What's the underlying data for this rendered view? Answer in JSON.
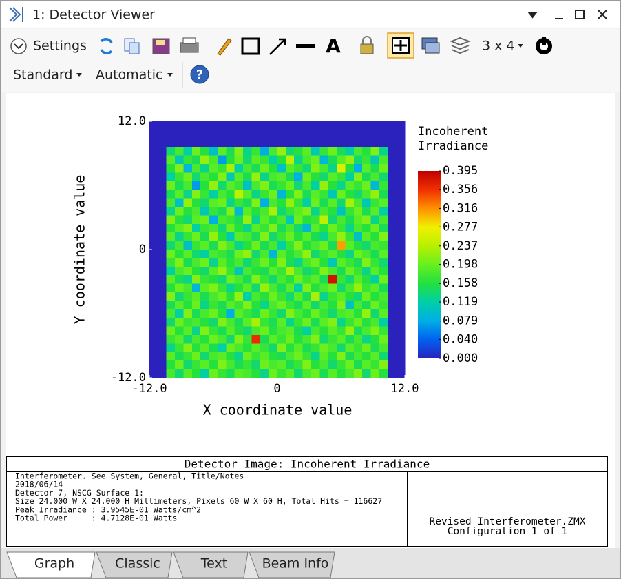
{
  "window": {
    "title": "1: Detector Viewer"
  },
  "toolbar": {
    "settings": "Settings",
    "layout": "3 x 4",
    "mode": "Standard",
    "scale": "Automatic"
  },
  "chart_data": {
    "type": "heatmap",
    "xlabel": "X coordinate value",
    "ylabel": "Y coordinate value",
    "colorbar_title": [
      "Incoherent",
      "Irradiance"
    ],
    "xlim": [
      -12,
      12
    ],
    "ylim": [
      -12,
      12
    ],
    "xticks": [
      {
        "value": -12,
        "label": "-12.0"
      },
      0,
      {
        "value": 12,
        "label": "12.0"
      }
    ],
    "yticks": [
      {
        "value": -12,
        "label": "-12.0"
      },
      0,
      {
        "value": 12,
        "label": "12.0"
      }
    ],
    "zlim": [
      0,
      0.395
    ],
    "zticks": [
      {
        "value": 0,
        "label": "0.000"
      },
      {
        "value": 0.04,
        "label": "0.040"
      },
      0.079,
      0.119,
      0.158,
      0.198,
      0.237,
      0.277,
      0.316,
      0.356,
      0.395
    ],
    "colorscale": [
      "#2b22bd",
      "#0060f0",
      "#00aee6",
      "#00cfa8",
      "#22e040",
      "#66f020",
      "#b8f000",
      "#f0f000",
      "#ff9000",
      "#f03000",
      "#c00000"
    ],
    "values": [
      [
        0,
        0,
        0,
        0,
        0,
        0,
        0,
        0,
        0,
        0,
        0,
        0,
        0,
        0,
        0,
        0,
        0,
        0,
        0,
        0,
        0,
        0,
        0,
        0,
        0,
        0,
        0,
        0,
        0,
        0
      ],
      [
        0,
        0,
        0,
        0,
        0,
        0,
        0,
        0,
        0,
        0,
        0,
        0,
        0,
        0,
        0,
        0,
        0,
        0,
        0,
        0,
        0,
        0,
        0,
        0,
        0,
        0,
        0,
        0,
        0,
        0
      ],
      [
        0,
        0,
        0,
        0,
        0,
        0,
        0,
        0,
        0,
        0,
        0,
        0,
        0,
        0,
        0,
        0,
        0,
        0,
        0,
        0,
        0,
        0,
        0,
        0,
        0,
        0,
        0,
        0,
        0,
        0
      ],
      [
        0,
        0,
        0.14,
        0.18,
        0.12,
        0.2,
        0.16,
        0.1,
        0.19,
        0.15,
        0.21,
        0.13,
        0.17,
        0.08,
        0.18,
        0.22,
        0.14,
        0.16,
        0.19,
        0.11,
        0.17,
        0.2,
        0.15,
        0.12,
        0.18,
        0.16,
        0.21,
        0.13,
        0,
        0
      ],
      [
        0,
        0,
        0.19,
        0.11,
        0.17,
        0.15,
        0.22,
        0.18,
        0.07,
        0.16,
        0.2,
        0.14,
        0.19,
        0.17,
        0.12,
        0.16,
        0.24,
        0.13,
        0.18,
        0.2,
        0.09,
        0.15,
        0.19,
        0.22,
        0.14,
        0.17,
        0.11,
        0.18,
        0,
        0
      ],
      [
        0,
        0,
        0.16,
        0.21,
        0.09,
        0.18,
        0.13,
        0.19,
        0.17,
        0.23,
        0.12,
        0.18,
        0.15,
        0.2,
        0.16,
        0.1,
        0.19,
        0.17,
        0.14,
        0.21,
        0.18,
        0.13,
        0.26,
        0.16,
        0.08,
        0.19,
        0.15,
        0.2,
        0,
        0
      ],
      [
        0,
        0,
        0.12,
        0.17,
        0.2,
        0.14,
        0.18,
        0.16,
        0.21,
        0.11,
        0.19,
        0.15,
        0.22,
        0.13,
        0.18,
        0.19,
        0.15,
        0.08,
        0.2,
        0.16,
        0.14,
        0.19,
        0.17,
        0.12,
        0.21,
        0.15,
        0.18,
        0.14,
        0,
        0
      ],
      [
        0,
        0,
        0.2,
        0.15,
        0.18,
        0.07,
        0.16,
        0.22,
        0.14,
        0.19,
        0.17,
        0.1,
        0.18,
        0.21,
        0.15,
        0.17,
        0.2,
        0.14,
        0.18,
        0.12,
        0.22,
        0.16,
        0.13,
        0.19,
        0.17,
        0.2,
        0.09,
        0.17,
        0,
        0
      ],
      [
        0,
        0,
        0.15,
        0.19,
        0.13,
        0.21,
        0.17,
        0.12,
        0.18,
        0.16,
        0.24,
        0.19,
        0.13,
        0.17,
        0.2,
        0.09,
        0.16,
        0.21,
        0.15,
        0.19,
        0.17,
        0.11,
        0.2,
        0.16,
        0.14,
        0.18,
        0.22,
        0.15,
        0,
        0
      ],
      [
        0,
        0,
        0.18,
        0.1,
        0.22,
        0.16,
        0.14,
        0.19,
        0.2,
        0.13,
        0.17,
        0.15,
        0.21,
        0.08,
        0.18,
        0.16,
        0.22,
        0.17,
        0.12,
        0.2,
        0.15,
        0.19,
        0.14,
        0.23,
        0.18,
        0.11,
        0.17,
        0.19,
        0,
        0
      ],
      [
        0,
        0,
        0.13,
        0.2,
        0.16,
        0.18,
        0.11,
        0.17,
        0.15,
        0.21,
        0.09,
        0.19,
        0.16,
        0.18,
        0.23,
        0.14,
        0.17,
        0.19,
        0.21,
        0.13,
        0.18,
        0.16,
        0.1,
        0.17,
        0.2,
        0.15,
        0.19,
        0.12,
        0,
        0
      ],
      [
        0,
        0,
        0.21,
        0.16,
        0.14,
        0.19,
        0.2,
        0.08,
        0.18,
        0.17,
        0.15,
        0.22,
        0.13,
        0.19,
        0.16,
        0.18,
        0.11,
        0.2,
        0.16,
        0.17,
        0.24,
        0.14,
        0.18,
        0.15,
        0.19,
        0.21,
        0.13,
        0.18,
        0,
        0
      ],
      [
        0,
        0,
        0.16,
        0.19,
        0.21,
        0.12,
        0.17,
        0.18,
        0.14,
        0.2,
        0.16,
        0.13,
        0.19,
        0.17,
        0.21,
        0.15,
        0.18,
        0.14,
        0.09,
        0.19,
        0.16,
        0.2,
        0.17,
        0.13,
        0.18,
        0.16,
        0.2,
        0.15,
        0,
        0
      ],
      [
        0,
        0,
        0.19,
        0.13,
        0.17,
        0.2,
        0.15,
        0.22,
        0.16,
        0.11,
        0.19,
        0.18,
        0.15,
        0.21,
        0.14,
        0.17,
        0.2,
        0.16,
        0.19,
        0.15,
        0.13,
        0.18,
        0.22,
        0.17,
        0.1,
        0.19,
        0.16,
        0.21,
        0,
        0
      ],
      [
        0,
        0,
        0.14,
        0.18,
        0.1,
        0.17,
        0.19,
        0.15,
        0.21,
        0.18,
        0.13,
        0.16,
        0.2,
        0.15,
        0.18,
        0.12,
        0.17,
        0.21,
        0.16,
        0.18,
        0.2,
        0.15,
        0.31,
        0.19,
        0.16,
        0.14,
        0.18,
        0.17,
        0,
        0
      ],
      [
        0,
        0,
        0.2,
        0.16,
        0.19,
        0.14,
        0.12,
        0.18,
        0.17,
        0.15,
        0.2,
        0.22,
        0.14,
        0.18,
        0.09,
        0.19,
        0.16,
        0.18,
        0.22,
        0.14,
        0.17,
        0.19,
        0.16,
        0.13,
        0.2,
        0.18,
        0.15,
        0.19,
        0,
        0
      ],
      [
        0,
        0,
        0.17,
        0.21,
        0.15,
        0.18,
        0.2,
        0.13,
        0.19,
        0.16,
        0.18,
        0.14,
        0.17,
        0.2,
        0.16,
        0.21,
        0.15,
        0.13,
        0.18,
        0.2,
        0.16,
        0.11,
        0.19,
        0.17,
        0.15,
        0.21,
        0.17,
        0.14,
        0,
        0
      ],
      [
        0,
        0,
        0.12,
        0.18,
        0.2,
        0.16,
        0.14,
        0.19,
        0.22,
        0.17,
        0.11,
        0.18,
        0.16,
        0.15,
        0.19,
        0.17,
        0.23,
        0.18,
        0.14,
        0.16,
        0.21,
        0.18,
        0.15,
        0.2,
        0.17,
        0.13,
        0.19,
        0.16,
        0,
        0
      ],
      [
        0,
        0,
        0.19,
        0.15,
        0.13,
        0.21,
        0.17,
        0.16,
        0.14,
        0.2,
        0.18,
        0.15,
        0.21,
        0.17,
        0.14,
        0.18,
        0.16,
        0.2,
        0.17,
        0.19,
        0.15,
        0.38,
        0.17,
        0.14,
        0.19,
        0.16,
        0.12,
        0.2,
        0,
        0
      ],
      [
        0,
        0,
        0.16,
        0.2,
        0.18,
        0.09,
        0.19,
        0.21,
        0.17,
        0.13,
        0.16,
        0.19,
        0.14,
        0.22,
        0.18,
        0.15,
        0.19,
        0.12,
        0.21,
        0.16,
        0.18,
        0.2,
        0.14,
        0.18,
        0.22,
        0.17,
        0.19,
        0.15,
        0,
        0
      ],
      [
        0,
        0,
        0.21,
        0.14,
        0.17,
        0.19,
        0.15,
        0.18,
        0.2,
        0.16,
        0.22,
        0.12,
        0.18,
        0.16,
        0.2,
        0.17,
        0.14,
        0.19,
        0.15,
        0.23,
        0.13,
        0.17,
        0.19,
        0.16,
        0.14,
        0.2,
        0.16,
        0.18,
        0,
        0
      ],
      [
        0,
        0,
        0.15,
        0.19,
        0.16,
        0.2,
        0.13,
        0.17,
        0.15,
        0.19,
        0.17,
        0.21,
        0.16,
        0.13,
        0.18,
        0.2,
        0.17,
        0.15,
        0.19,
        0.14,
        0.18,
        0.16,
        0.21,
        0.1,
        0.18,
        0.15,
        0.2,
        0.17,
        0,
        0
      ],
      [
        0,
        0,
        0.18,
        0.12,
        0.21,
        0.15,
        0.18,
        0.2,
        0.16,
        0.08,
        0.19,
        0.17,
        0.15,
        0.2,
        0.17,
        0.14,
        0.21,
        0.18,
        0.16,
        0.2,
        0.17,
        0.14,
        0.18,
        0.19,
        0.16,
        0.22,
        0.14,
        0.19,
        0,
        0
      ],
      [
        0,
        0,
        0.14,
        0.2,
        0.17,
        0.18,
        0.16,
        0.14,
        0.21,
        0.18,
        0.15,
        0.19,
        0.23,
        0.17,
        0.15,
        0.19,
        0.13,
        0.17,
        0.2,
        0.15,
        0.19,
        0.21,
        0.13,
        0.17,
        0.2,
        0.16,
        0.18,
        0.12,
        0,
        0
      ],
      [
        0,
        0,
        0.2,
        0.16,
        0.19,
        0.13,
        0.21,
        0.17,
        0.15,
        0.19,
        0.16,
        0.14,
        0.18,
        0.2,
        0.16,
        0.18,
        0.19,
        0.15,
        0.12,
        0.18,
        0.16,
        0.19,
        0.17,
        0.22,
        0.15,
        0.18,
        0.21,
        0.17,
        0,
        0
      ],
      [
        0,
        0,
        0.17,
        0.19,
        0.14,
        0.18,
        0.16,
        0.2,
        0.18,
        0.14,
        0.21,
        0.17,
        0.36,
        0.15,
        0.19,
        0.17,
        0.2,
        0.16,
        0.18,
        0.21,
        0.14,
        0.17,
        0.19,
        0.15,
        0.18,
        0.13,
        0.16,
        0.2,
        0,
        0
      ],
      [
        0,
        0,
        0.13,
        0.17,
        0.21,
        0.16,
        0.19,
        0.15,
        0.12,
        0.2,
        0.18,
        0.16,
        0.19,
        0.17,
        0.14,
        0.21,
        0.16,
        0.19,
        0.15,
        0.17,
        0.2,
        0.18,
        0.14,
        0.19,
        0.17,
        0.2,
        0.15,
        0.18,
        0,
        0
      ],
      [
        0,
        0,
        0.19,
        0.15,
        0.17,
        0.2,
        0.14,
        0.18,
        0.19,
        0.16,
        0.13,
        0.2,
        0.17,
        0.19,
        0.16,
        0.15,
        0.18,
        0.2,
        0.17,
        0.13,
        0.19,
        0.16,
        0.21,
        0.15,
        0.18,
        0.16,
        0.19,
        0.14,
        0,
        0
      ],
      [
        0,
        0,
        0.16,
        0.2,
        0.14,
        0.17,
        0.19,
        0.16,
        0.21,
        0.18,
        0.15,
        0.17,
        0.14,
        0.2,
        0.18,
        0.19,
        0.15,
        0.17,
        0.21,
        0.16,
        0.18,
        0.14,
        0.17,
        0.2,
        0.15,
        0.19,
        0.17,
        0.21,
        0,
        0
      ],
      [
        0,
        0,
        0.18,
        0.14,
        0.19,
        0.16,
        0.12,
        0.2,
        0.17,
        0.15,
        0.19,
        0.18,
        0.16,
        0.13,
        0.2,
        0.17,
        0.19,
        0.14,
        0.18,
        0.2,
        0.15,
        0.19,
        0.16,
        0.18,
        0.21,
        0.14,
        0.2,
        0.16,
        0,
        0
      ]
    ]
  },
  "info": {
    "title": "Detector Image: Incoherent Irradiance",
    "lines": [
      "Interferometer. See System, General, Title/Notes",
      "2018/06/14",
      "Detector 7, NSCG Surface 1:",
      "Size 24.000 W X 24.000 H Millimeters, Pixels 60 W X 60 H, Total Hits = 116627",
      "Peak Irradiance : 3.9545E-01 Watts/cm^2",
      "Total Power     : 4.7128E-01 Watts"
    ],
    "file": "Revised Interferometer.ZMX",
    "config": "Configuration 1 of 1"
  },
  "tabs": [
    "Graph",
    "Classic",
    "Text",
    "Beam Info"
  ]
}
